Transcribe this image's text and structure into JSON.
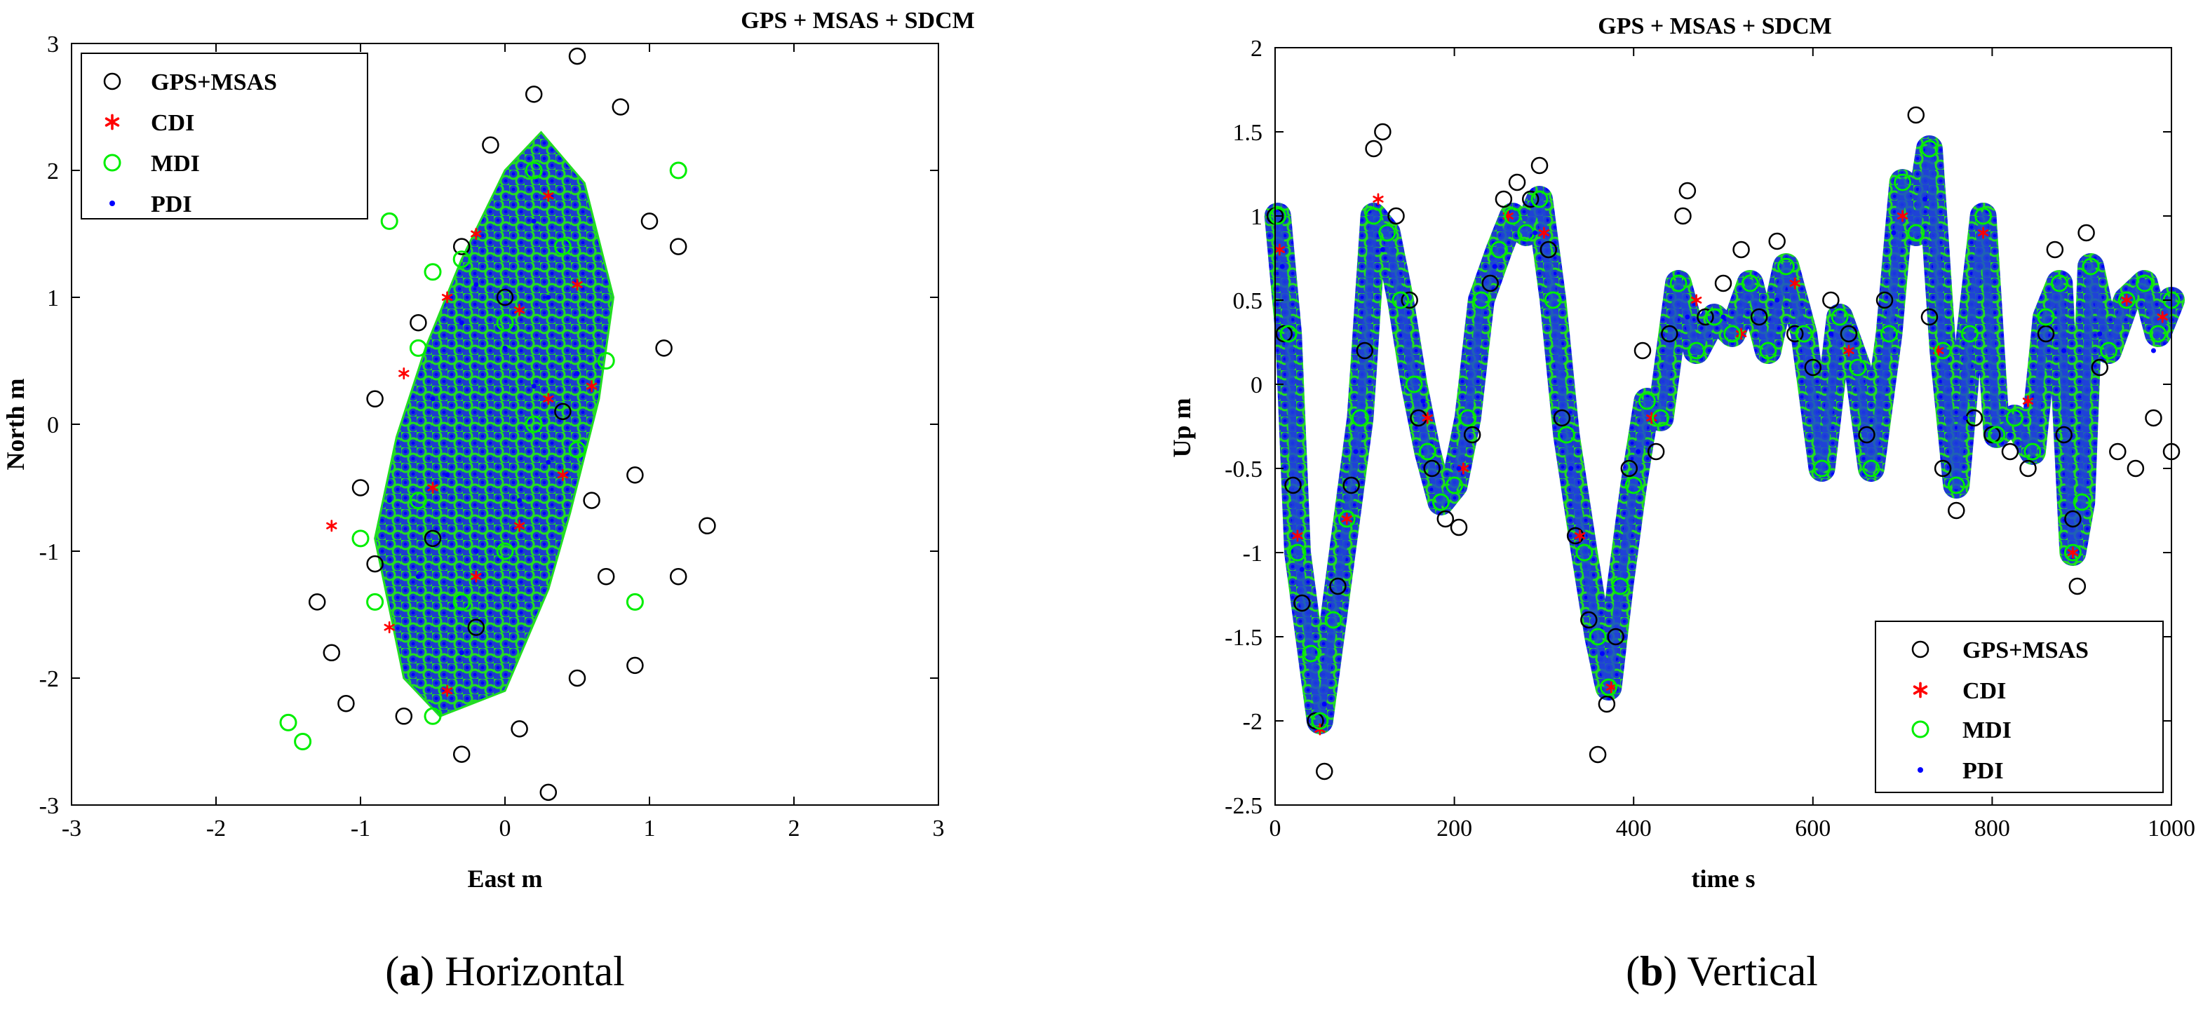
{
  "chart_data": [
    {
      "type": "scatter",
      "title": "GPS + MSAS + SDCM",
      "xlabel": "East m",
      "ylabel": "North m",
      "xlim": [
        -3,
        3
      ],
      "ylim": [
        -3,
        3
      ],
      "xticks": [
        "-3",
        "-2",
        "-1",
        "0",
        "1",
        "2",
        "3"
      ],
      "yticks": [
        "-3",
        "-2",
        "-1",
        "0",
        "1",
        "2",
        "3"
      ],
      "legend_position": "top-left",
      "caption_letter": "a",
      "caption_text": "Horizontal",
      "series": [
        {
          "name": "GPS+MSAS",
          "marker": "open-circle",
          "color": "#000000",
          "points": [
            [
              -0.9,
              -1.1
            ],
            [
              -1.2,
              -1.8
            ],
            [
              -0.7,
              -2.3
            ],
            [
              -0.3,
              -2.6
            ],
            [
              0.1,
              -2.4
            ],
            [
              0.5,
              -2.0
            ],
            [
              0.7,
              -1.2
            ],
            [
              0.9,
              -0.4
            ],
            [
              1.1,
              0.6
            ],
            [
              1.0,
              1.6
            ],
            [
              0.8,
              2.5
            ],
            [
              0.5,
              2.9
            ],
            [
              0.2,
              2.6
            ],
            [
              -0.1,
              2.2
            ],
            [
              -0.3,
              1.4
            ],
            [
              -0.6,
              0.8
            ],
            [
              -0.9,
              0.2
            ],
            [
              -1.0,
              -0.5
            ],
            [
              -1.3,
              -1.4
            ],
            [
              -1.1,
              -2.2
            ],
            [
              0.9,
              -1.9
            ],
            [
              1.2,
              -1.2
            ],
            [
              1.4,
              -0.8
            ],
            [
              1.2,
              1.4
            ],
            [
              0.3,
              -2.9
            ],
            [
              -0.5,
              -0.9
            ],
            [
              0.4,
              0.1
            ],
            [
              0.0,
              1.0
            ],
            [
              -0.2,
              -1.6
            ],
            [
              0.6,
              -0.6
            ]
          ]
        },
        {
          "name": "CDI",
          "marker": "star",
          "color": "#ff0000",
          "points": [
            [
              -0.5,
              -0.5
            ],
            [
              -0.2,
              -1.2
            ],
            [
              0.1,
              -0.8
            ],
            [
              0.3,
              0.2
            ],
            [
              0.1,
              0.9
            ],
            [
              -0.2,
              1.5
            ],
            [
              0.3,
              1.8
            ],
            [
              0.5,
              1.1
            ],
            [
              0.6,
              0.3
            ],
            [
              0.4,
              -0.4
            ],
            [
              -0.4,
              -2.1
            ],
            [
              -0.8,
              -1.6
            ],
            [
              -1.2,
              -0.8
            ],
            [
              -0.7,
              0.4
            ],
            [
              -0.4,
              1.0
            ]
          ]
        },
        {
          "name": "MDI",
          "marker": "open-circle",
          "color": "#00ee00",
          "points": [
            [
              -0.6,
              -0.6
            ],
            [
              -0.3,
              -1.4
            ],
            [
              0.0,
              -1.0
            ],
            [
              0.2,
              0.0
            ],
            [
              0.0,
              0.8
            ],
            [
              -0.3,
              1.3
            ],
            [
              0.2,
              2.0
            ],
            [
              0.4,
              1.4
            ],
            [
              0.7,
              0.5
            ],
            [
              0.5,
              -0.2
            ],
            [
              -0.5,
              -2.3
            ],
            [
              -0.9,
              -1.4
            ],
            [
              -1.0,
              -0.9
            ],
            [
              -0.6,
              0.6
            ],
            [
              -0.5,
              1.2
            ],
            [
              -1.5,
              -2.35
            ],
            [
              -1.4,
              -2.5
            ],
            [
              -0.8,
              1.6
            ],
            [
              1.2,
              2.0
            ],
            [
              0.9,
              -1.4
            ]
          ]
        },
        {
          "name": "PDI",
          "marker": "dot",
          "color": "#0000ff",
          "points": [
            [
              -0.4,
              -0.4
            ],
            [
              -0.2,
              -1.0
            ],
            [
              0.1,
              -0.6
            ],
            [
              0.2,
              0.3
            ],
            [
              0.0,
              0.6
            ],
            [
              -0.2,
              1.1
            ],
            [
              0.2,
              1.6
            ],
            [
              0.3,
              1.0
            ],
            [
              0.5,
              0.4
            ],
            [
              0.3,
              -0.3
            ],
            [
              -0.3,
              -1.8
            ],
            [
              -0.6,
              -1.2
            ],
            [
              -0.8,
              -0.6
            ],
            [
              -0.5,
              0.2
            ],
            [
              -0.3,
              0.8
            ]
          ]
        }
      ]
    },
    {
      "type": "scatter",
      "title": "GPS + MSAS + SDCM",
      "xlabel": "time s",
      "ylabel": "Up m",
      "xlim": [
        0,
        1000
      ],
      "ylim": [
        -2.5,
        2
      ],
      "xticks": [
        "0",
        "200",
        "400",
        "600",
        "800",
        "1000"
      ],
      "yticks": [
        "-2.5",
        "-2",
        "-1.5",
        "-1",
        "-0.5",
        "0",
        "0.5",
        "1",
        "1.5",
        "2"
      ],
      "legend_position": "bottom-right",
      "caption_letter": "b",
      "caption_text": "Vertical",
      "series": [
        {
          "name": "GPS+MSAS",
          "marker": "open-circle",
          "color": "#000000",
          "points": [
            [
              0,
              1.0
            ],
            [
              10,
              0.3
            ],
            [
              20,
              -0.6
            ],
            [
              30,
              -1.3
            ],
            [
              45,
              -2.0
            ],
            [
              55,
              -2.3
            ],
            [
              70,
              -1.2
            ],
            [
              85,
              -0.6
            ],
            [
              100,
              0.2
            ],
            [
              110,
              1.4
            ],
            [
              120,
              1.5
            ],
            [
              135,
              1.0
            ],
            [
              150,
              0.5
            ],
            [
              160,
              -0.2
            ],
            [
              175,
              -0.5
            ],
            [
              190,
              -0.8
            ],
            [
              205,
              -0.85
            ],
            [
              220,
              -0.3
            ],
            [
              240,
              0.6
            ],
            [
              255,
              1.1
            ],
            [
              270,
              1.2
            ],
            [
              285,
              1.1
            ],
            [
              295,
              1.3
            ],
            [
              305,
              0.8
            ],
            [
              320,
              -0.2
            ],
            [
              335,
              -0.9
            ],
            [
              350,
              -1.4
            ],
            [
              360,
              -2.2
            ],
            [
              370,
              -1.9
            ],
            [
              380,
              -1.5
            ],
            [
              395,
              -0.5
            ],
            [
              410,
              0.2
            ],
            [
              425,
              -0.4
            ],
            [
              440,
              0.3
            ],
            [
              455,
              1.0
            ],
            [
              460,
              1.15
            ],
            [
              480,
              0.4
            ],
            [
              500,
              0.6
            ],
            [
              520,
              0.8
            ],
            [
              540,
              0.4
            ],
            [
              560,
              0.85
            ],
            [
              580,
              0.3
            ],
            [
              600,
              0.1
            ],
            [
              620,
              0.5
            ],
            [
              640,
              0.3
            ],
            [
              660,
              -0.3
            ],
            [
              680,
              0.5
            ],
            [
              700,
              1.2
            ],
            [
              715,
              1.6
            ],
            [
              730,
              0.4
            ],
            [
              745,
              -0.5
            ],
            [
              760,
              -0.75
            ],
            [
              780,
              -0.2
            ],
            [
              800,
              -0.3
            ],
            [
              820,
              -0.4
            ],
            [
              840,
              -0.5
            ],
            [
              860,
              0.3
            ],
            [
              870,
              0.8
            ],
            [
              880,
              -0.3
            ],
            [
              890,
              -0.8
            ],
            [
              895,
              -1.2
            ],
            [
              905,
              0.9
            ],
            [
              920,
              0.1
            ],
            [
              940,
              -0.4
            ],
            [
              960,
              -0.5
            ],
            [
              980,
              -0.2
            ],
            [
              1000,
              -0.4
            ]
          ]
        },
        {
          "name": "CDI",
          "marker": "star",
          "color": "#ff0000",
          "points": [
            [
              5,
              0.8
            ],
            [
              25,
              -0.9
            ],
            [
              50,
              -2.05
            ],
            [
              80,
              -0.8
            ],
            [
              115,
              1.1
            ],
            [
              170,
              -0.2
            ],
            [
              210,
              -0.5
            ],
            [
              260,
              1.0
            ],
            [
              300,
              0.9
            ],
            [
              340,
              -0.9
            ],
            [
              375,
              -1.8
            ],
            [
              420,
              -0.2
            ],
            [
              470,
              0.5
            ],
            [
              520,
              0.3
            ],
            [
              580,
              0.6
            ],
            [
              640,
              0.2
            ],
            [
              700,
              1.0
            ],
            [
              740,
              0.2
            ],
            [
              790,
              0.9
            ],
            [
              840,
              -0.1
            ],
            [
              890,
              -1.0
            ],
            [
              950,
              0.5
            ],
            [
              990,
              0.4
            ]
          ]
        },
        {
          "name": "MDI",
          "marker": "open-circle",
          "color": "#00ee00",
          "points": [
            [
              3,
              1.0
            ],
            [
              15,
              0.3
            ],
            [
              25,
              -1.0
            ],
            [
              40,
              -1.6
            ],
            [
              50,
              -2.0
            ],
            [
              65,
              -1.4
            ],
            [
              80,
              -0.8
            ],
            [
              95,
              -0.2
            ],
            [
              110,
              1.0
            ],
            [
              125,
              0.9
            ],
            [
              140,
              0.5
            ],
            [
              155,
              0.0
            ],
            [
              170,
              -0.4
            ],
            [
              185,
              -0.7
            ],
            [
              200,
              -0.6
            ],
            [
              215,
              -0.2
            ],
            [
              230,
              0.5
            ],
            [
              250,
              0.8
            ],
            [
              265,
              1.0
            ],
            [
              280,
              0.9
            ],
            [
              295,
              1.1
            ],
            [
              310,
              0.5
            ],
            [
              325,
              -0.3
            ],
            [
              345,
              -1.0
            ],
            [
              360,
              -1.5
            ],
            [
              372,
              -1.8
            ],
            [
              385,
              -1.2
            ],
            [
              400,
              -0.6
            ],
            [
              415,
              -0.1
            ],
            [
              430,
              -0.2
            ],
            [
              450,
              0.6
            ],
            [
              470,
              0.2
            ],
            [
              490,
              0.4
            ],
            [
              510,
              0.3
            ],
            [
              530,
              0.6
            ],
            [
              550,
              0.2
            ],
            [
              570,
              0.7
            ],
            [
              590,
              0.3
            ],
            [
              610,
              -0.5
            ],
            [
              630,
              0.4
            ],
            [
              650,
              0.1
            ],
            [
              665,
              -0.5
            ],
            [
              685,
              0.3
            ],
            [
              700,
              1.2
            ],
            [
              715,
              0.9
            ],
            [
              730,
              1.4
            ],
            [
              745,
              0.2
            ],
            [
              760,
              -0.6
            ],
            [
              775,
              0.3
            ],
            [
              790,
              1.0
            ],
            [
              805,
              -0.3
            ],
            [
              825,
              -0.2
            ],
            [
              845,
              -0.4
            ],
            [
              860,
              0.4
            ],
            [
              875,
              0.6
            ],
            [
              890,
              -1.0
            ],
            [
              900,
              -0.7
            ],
            [
              910,
              0.7
            ],
            [
              930,
              0.2
            ],
            [
              950,
              0.5
            ],
            [
              970,
              0.6
            ],
            [
              985,
              0.3
            ],
            [
              1000,
              0.5
            ]
          ]
        },
        {
          "name": "PDI",
          "marker": "dot",
          "color": "#0000ff",
          "points": [
            [
              8,
              0.7
            ],
            [
              30,
              -1.1
            ],
            [
              55,
              -1.9
            ],
            [
              90,
              -0.4
            ],
            [
              120,
              0.8
            ],
            [
              165,
              -0.1
            ],
            [
              205,
              -0.5
            ],
            [
              245,
              0.7
            ],
            [
              290,
              0.9
            ],
            [
              330,
              -0.5
            ],
            [
              365,
              -1.6
            ],
            [
              405,
              -0.4
            ],
            [
              460,
              0.4
            ],
            [
              500,
              0.4
            ],
            [
              560,
              0.5
            ],
            [
              620,
              0.3
            ],
            [
              690,
              0.9
            ],
            [
              725,
              1.1
            ],
            [
              770,
              -0.2
            ],
            [
              820,
              -0.3
            ],
            [
              880,
              0.2
            ],
            [
              920,
              0.3
            ],
            [
              980,
              0.2
            ]
          ]
        }
      ]
    }
  ]
}
